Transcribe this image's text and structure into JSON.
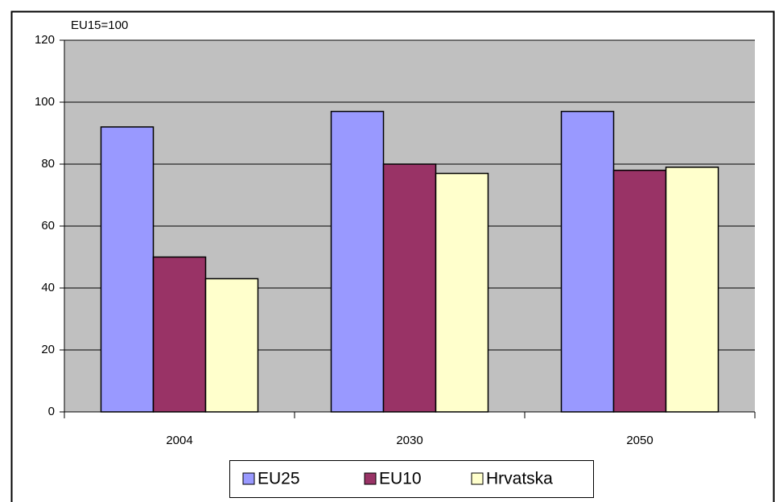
{
  "chart_data": {
    "type": "bar",
    "ylabel": "EU15=100",
    "categories": [
      "2004",
      "2030",
      "2050"
    ],
    "series": [
      {
        "name": "EU25",
        "color": "#9999ff",
        "values": [
          92,
          97,
          97
        ]
      },
      {
        "name": "EU10",
        "color": "#993366",
        "values": [
          50,
          80,
          78
        ]
      },
      {
        "name": "Hrvatska",
        "color": "#ffffcc",
        "values": [
          43,
          77,
          79
        ]
      }
    ],
    "ylim": [
      0,
      120
    ],
    "yticks": [
      0,
      20,
      40,
      60,
      80,
      100,
      120
    ],
    "grid": true,
    "legend": "bottom"
  }
}
